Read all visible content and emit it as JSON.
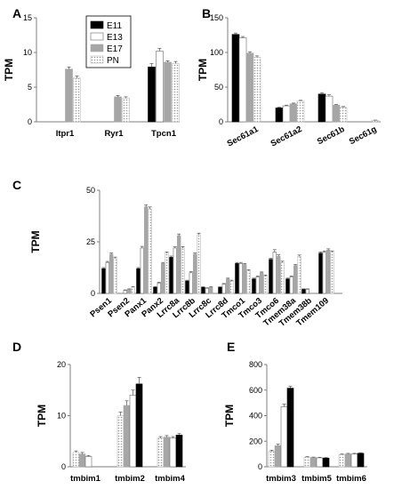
{
  "series": [
    "E11",
    "E13",
    "E17",
    "PN"
  ],
  "legend_styles": {
    "E11": "solid-black",
    "E13": "white",
    "E17": "solid-gray",
    "PN": "dotted-light"
  },
  "chart_data": [
    {
      "panel": "A",
      "type": "bar",
      "ylabel": "TPM",
      "ylim": [
        0,
        15
      ],
      "yticks": [
        0,
        5,
        10,
        15
      ],
      "categories": [
        "Itpr1",
        "Ryr1",
        "Tpcn1"
      ],
      "series": [
        {
          "name": "E11",
          "values": [
            0,
            0,
            7.9
          ]
        },
        {
          "name": "E13",
          "values": [
            0,
            0,
            10.2
          ]
        },
        {
          "name": "E17",
          "values": [
            7.6,
            3.6,
            8.6
          ]
        },
        {
          "name": "PN",
          "values": [
            6.3,
            3.4,
            8.4
          ]
        }
      ],
      "errors": [
        [
          0,
          0,
          0.5
        ],
        [
          0,
          0,
          0.4
        ],
        [
          0.3,
          0.2,
          0.2
        ],
        [
          0.3,
          0.2,
          0.3
        ]
      ]
    },
    {
      "panel": "B",
      "type": "bar",
      "ylabel": "TPM",
      "ylim": [
        0,
        150
      ],
      "yticks": [
        0,
        50,
        100,
        150
      ],
      "categories": [
        "Sec61a1",
        "Sec61a2",
        "Sec61b",
        "Sec61g"
      ],
      "series": [
        {
          "name": "E11",
          "values": [
            126,
            20,
            40,
            0
          ]
        },
        {
          "name": "E13",
          "values": [
            121,
            23,
            37,
            0
          ]
        },
        {
          "name": "E17",
          "values": [
            99,
            26,
            24,
            0
          ]
        },
        {
          "name": "PN",
          "values": [
            93,
            30,
            21,
            2
          ]
        }
      ],
      "errors": [
        [
          2,
          1,
          2,
          0
        ],
        [
          2,
          1,
          2,
          0
        ],
        [
          2,
          1,
          1,
          0
        ],
        [
          2,
          1,
          1,
          0.5
        ]
      ]
    },
    {
      "panel": "C",
      "type": "bar",
      "ylabel": "TPM",
      "ylim": [
        0,
        50
      ],
      "yticks": [
        0,
        25,
        50
      ],
      "categories": [
        "Psen1",
        "Psen2",
        "Panx1",
        "Panx2",
        "Lrrc8a",
        "Lrrc8b",
        "Lrrc8c",
        "Lrrc8d",
        "Tmco1",
        "Tmco3",
        "Tmco6",
        "Tmem38a",
        "Tmem38b",
        "Tmem109"
      ],
      "series": [
        {
          "name": "E11",
          "values": [
            12,
            0,
            12,
            3,
            17.5,
            6,
            3,
            3,
            14.5,
            7,
            16.5,
            7,
            2,
            19.5
          ]
        },
        {
          "name": "E13",
          "values": [
            15,
            1.5,
            22,
            5,
            22,
            10,
            2.5,
            4.5,
            14.5,
            8,
            20,
            8,
            2,
            20
          ]
        },
        {
          "name": "E17",
          "values": [
            19,
            2,
            42,
            14.5,
            28,
            19,
            3,
            7,
            14,
            10,
            18,
            13.5,
            0,
            21
          ]
        },
        {
          "name": "PN",
          "values": [
            17,
            3,
            41,
            19.5,
            22,
            28.5,
            0,
            6,
            11,
            8.5,
            15,
            18,
            0,
            20
          ]
        }
      ],
      "errors": [
        [
          0.5,
          0,
          0.5,
          0.3,
          0.6,
          0.4,
          0.2,
          0.2,
          0.5,
          0.4,
          0.6,
          0.4,
          0.2,
          0.6
        ],
        [
          0.5,
          0.2,
          0.8,
          0.4,
          0.6,
          0.5,
          0.2,
          0.3,
          0.5,
          0.4,
          1.2,
          0.4,
          0.2,
          0.6
        ],
        [
          0.6,
          0.2,
          0.9,
          0.5,
          0.8,
          0.6,
          0.2,
          0.4,
          0.5,
          0.4,
          0.7,
          0.5,
          0,
          0.6
        ],
        [
          0.6,
          0.3,
          0.9,
          0.6,
          0.7,
          0.7,
          0,
          0.4,
          0.5,
          0.4,
          0.6,
          0.6,
          0,
          0.6
        ]
      ]
    },
    {
      "panel": "D",
      "type": "bar",
      "ylabel": "TPM",
      "ylim": [
        0,
        20
      ],
      "yticks": [
        0,
        10,
        20
      ],
      "categories": [
        "tmbim1",
        "tmbim2",
        "tmbim4"
      ],
      "series": [
        {
          "name": "PN",
          "values": [
            2.8,
            10,
            5.6
          ]
        },
        {
          "name": "E17",
          "values": [
            2.5,
            12,
            5.8
          ]
        },
        {
          "name": "E13",
          "values": [
            2.0,
            14,
            5.6
          ]
        },
        {
          "name": "E11",
          "values": [
            0,
            16.2,
            6.2
          ]
        }
      ],
      "errors": [
        [
          0.3,
          0.7,
          0.3
        ],
        [
          0.3,
          0.9,
          0.3
        ],
        [
          0.2,
          1.0,
          0.3
        ],
        [
          0,
          1.3,
          0.3
        ]
      ]
    },
    {
      "panel": "E",
      "type": "bar",
      "ylabel": "TPM",
      "ylim": [
        0,
        800
      ],
      "yticks": [
        0,
        200,
        400,
        600,
        800
      ],
      "categories": [
        "tmbim3",
        "tmbim5",
        "tmbim6"
      ],
      "series": [
        {
          "name": "PN",
          "values": [
            120,
            75,
            95
          ]
        },
        {
          "name": "E17",
          "values": [
            165,
            72,
            100
          ]
        },
        {
          "name": "E13",
          "values": [
            470,
            70,
            100
          ]
        },
        {
          "name": "E11",
          "values": [
            615,
            68,
            105
          ]
        }
      ],
      "errors": [
        [
          10,
          4,
          5
        ],
        [
          12,
          4,
          5
        ],
        [
          20,
          4,
          5
        ],
        [
          15,
          4,
          5
        ]
      ]
    }
  ]
}
